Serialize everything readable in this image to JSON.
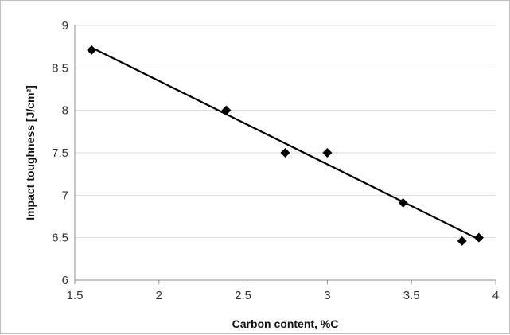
{
  "chart_data": {
    "type": "scatter",
    "title": "",
    "xlabel": "Carbon content, %C",
    "ylabel": "Impact toughness [J/cm²]",
    "xlim": [
      1.5,
      4
    ],
    "ylim": [
      6,
      9
    ],
    "x_ticks": [
      "1.5",
      "2",
      "2.5",
      "3",
      "3.5",
      "4"
    ],
    "y_ticks": [
      "6",
      "6.5",
      "7",
      "7.5",
      "8",
      "8.5",
      "9"
    ],
    "grid": "horizontal",
    "legend": "none",
    "series": [
      {
        "marker": "diamond",
        "color": "#000000",
        "x": [
          1.6,
          2.4,
          2.75,
          3.0,
          3.45,
          3.8,
          3.9
        ],
        "y": [
          8.71,
          8.0,
          7.5,
          7.5,
          6.91,
          6.46,
          6.5
        ]
      }
    ],
    "trendline": {
      "type": "linear",
      "color": "#000000",
      "x": [
        1.6,
        3.9
      ],
      "y": [
        8.74,
        6.48
      ]
    }
  }
}
